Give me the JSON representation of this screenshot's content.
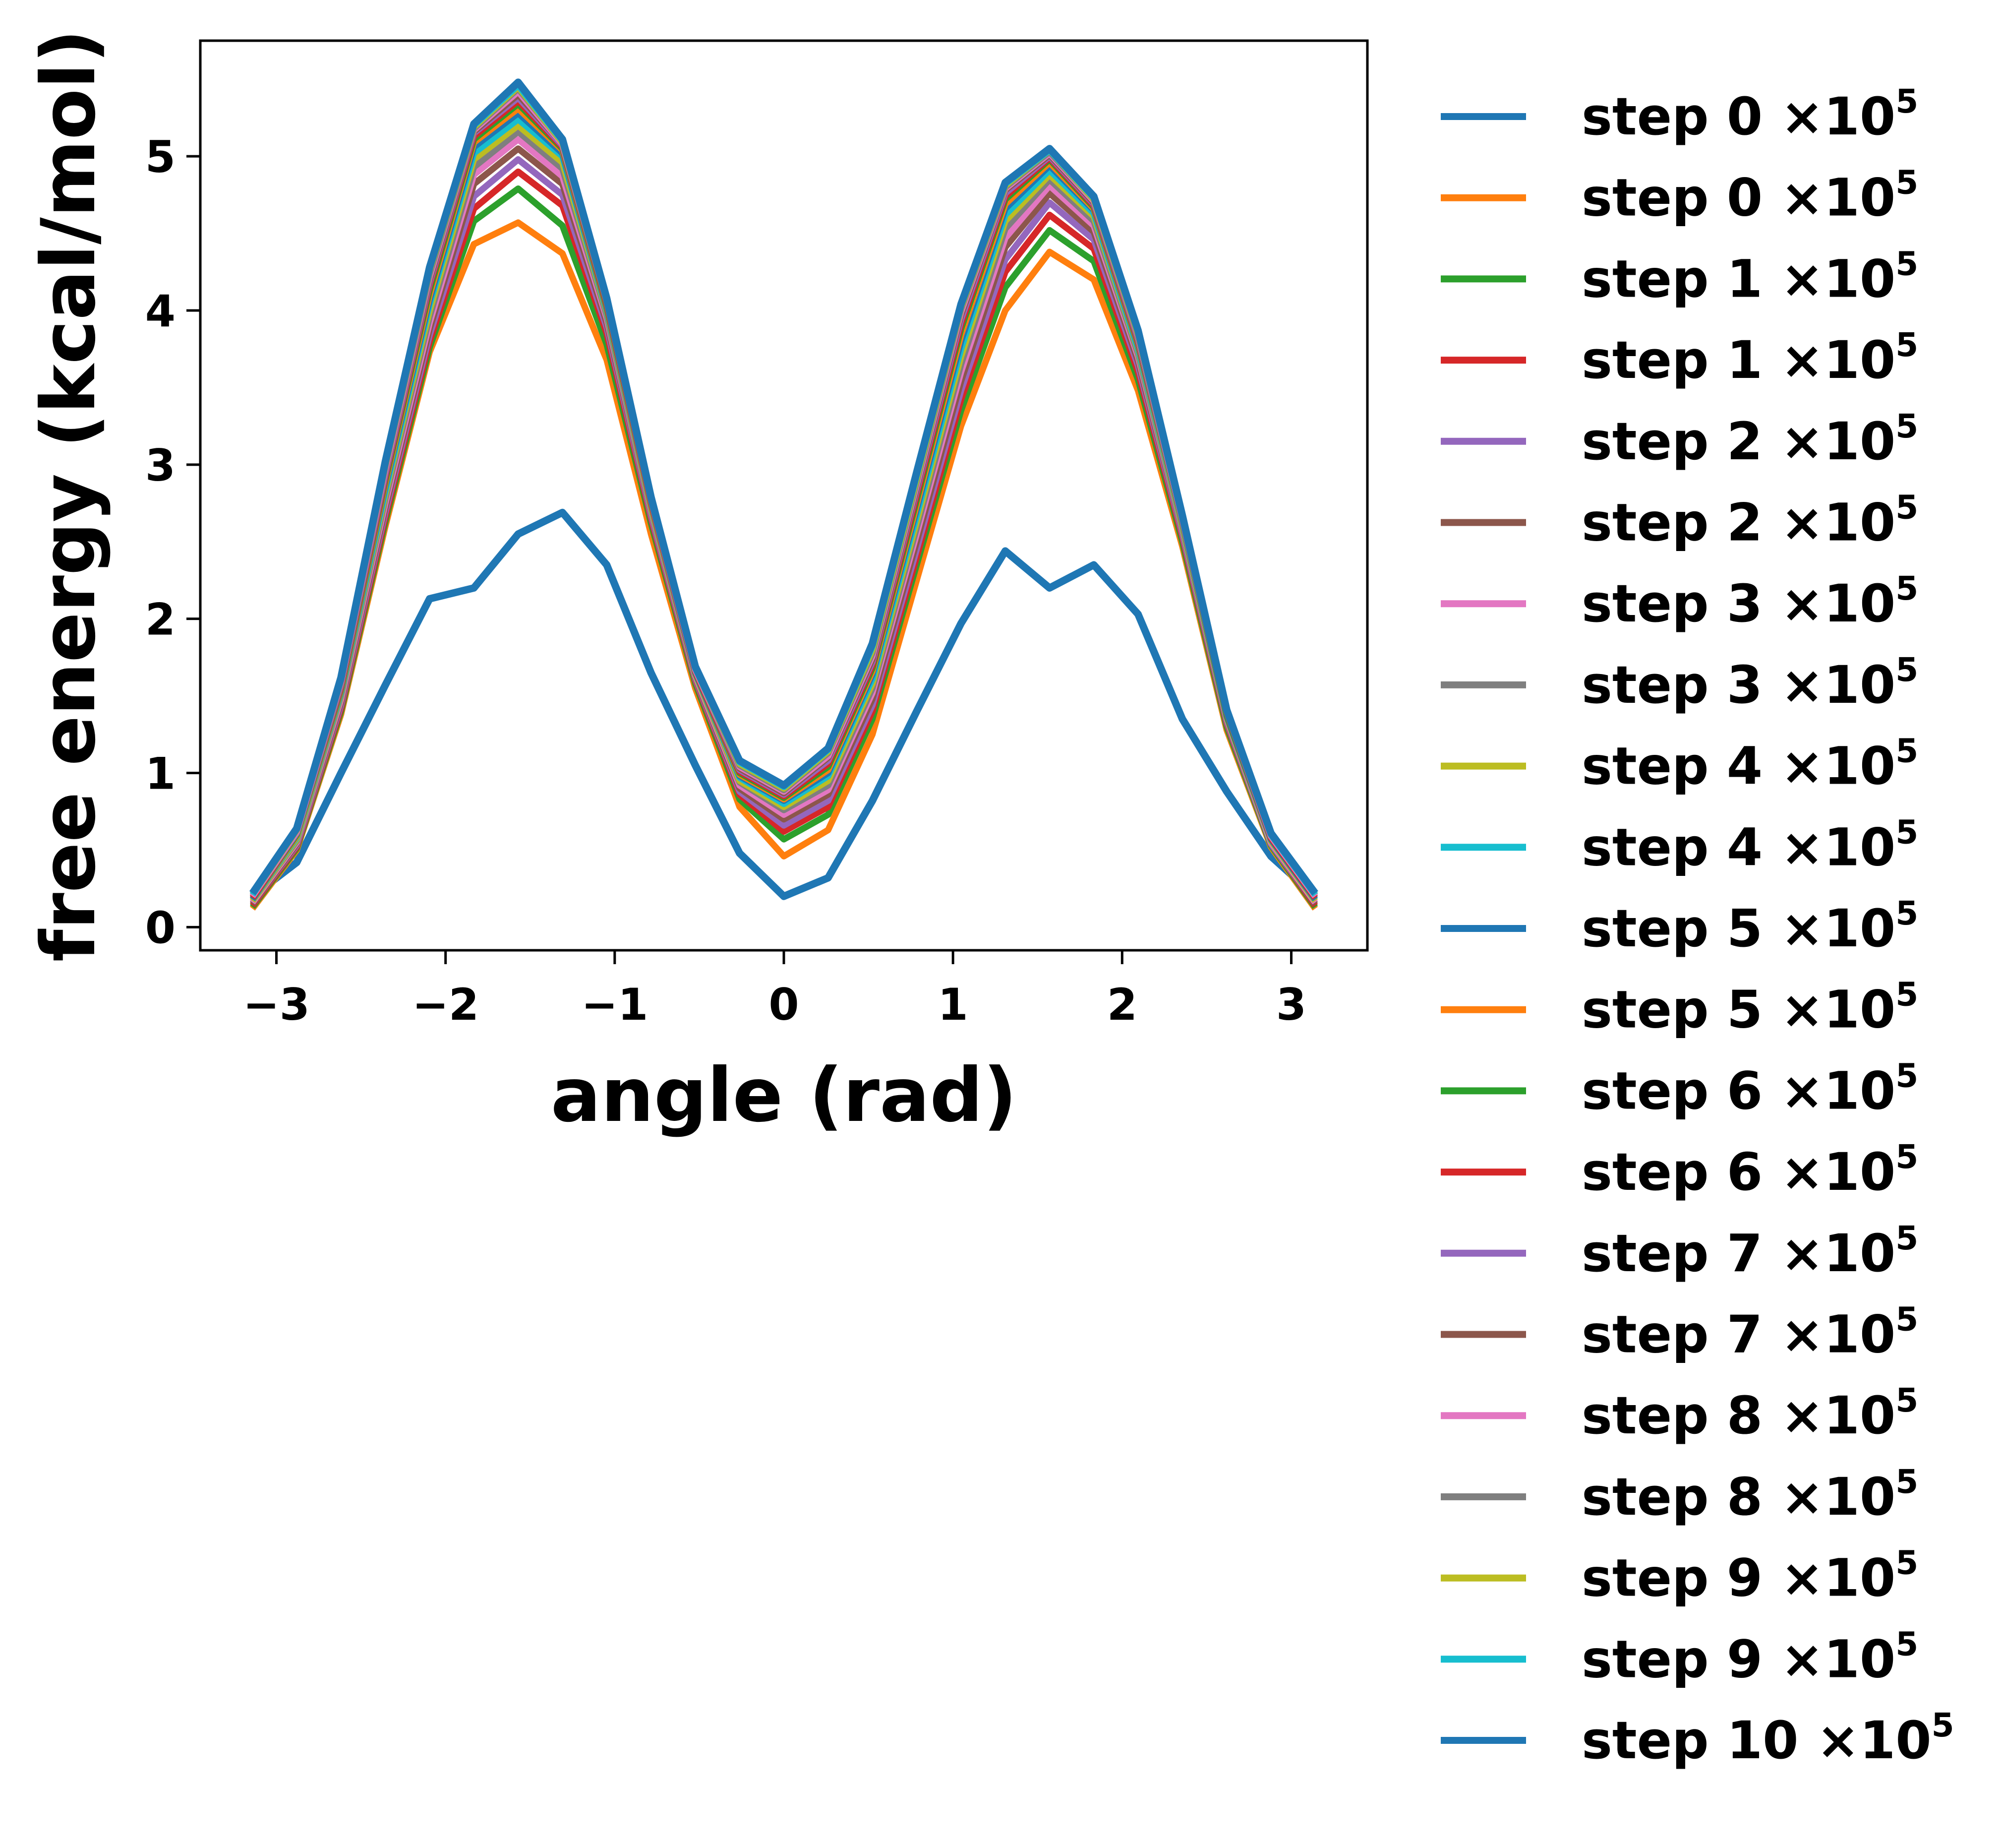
{
  "chart_data": {
    "type": "line",
    "xlabel": "angle (rad)",
    "ylabel": "free energy (kcal/mol)",
    "xlim": [
      -3.45,
      3.45
    ],
    "ylim": [
      -0.15,
      5.75
    ],
    "xticks": [
      -3,
      -2,
      -1,
      0,
      1,
      2,
      3
    ],
    "xtick_labels": [
      "−3",
      "−2",
      "−1",
      "0",
      "1",
      "2",
      "3"
    ],
    "yticks": [
      0,
      1,
      2,
      3,
      4,
      5
    ],
    "ytick_labels": [
      "0",
      "1",
      "2",
      "3",
      "4",
      "5"
    ],
    "grid": false,
    "legend_position": "outside-right",
    "x": [
      -3.1416,
      -2.8798,
      -2.618,
      -2.3562,
      -2.0944,
      -1.8326,
      -1.5708,
      -1.309,
      -1.0472,
      -0.7854,
      -0.5236,
      -0.2618,
      0,
      0.2618,
      0.5236,
      0.7854,
      1.0472,
      1.309,
      1.5708,
      1.8326,
      2.0944,
      2.3562,
      2.618,
      2.8798,
      3.1416
    ],
    "series": [
      {
        "name": "step 0 ×10",
        "exponent": "5",
        "color": "#1f77b4",
        "values": [
          0.2,
          0.42,
          1.0,
          1.57,
          2.13,
          2.2,
          2.55,
          2.69,
          2.35,
          1.65,
          1.05,
          0.48,
          0.2,
          0.32,
          0.82,
          1.4,
          1.97,
          2.44,
          2.2,
          2.35,
          2.03,
          1.35,
          0.88,
          0.46,
          0.2
        ]
      },
      {
        "name": "step 0 ×10",
        "exponent": "5",
        "color": "#ff7f0e",
        "values": [
          0.12,
          0.5,
          1.38,
          2.6,
          3.73,
          4.43,
          4.57,
          4.37,
          3.68,
          2.55,
          1.55,
          0.78,
          0.46,
          0.63,
          1.25,
          2.25,
          3.25,
          4.0,
          4.38,
          4.2,
          3.48,
          2.47,
          1.28,
          0.52,
          0.12
        ]
      },
      {
        "name": "step 1 ×10",
        "exponent": "5",
        "color": "#2ca02c",
        "values": [
          0.13,
          0.51,
          1.4,
          2.63,
          3.76,
          4.58,
          4.79,
          4.55,
          3.78,
          2.62,
          1.58,
          0.83,
          0.57,
          0.73,
          1.35,
          2.35,
          3.35,
          4.15,
          4.52,
          4.32,
          3.55,
          2.5,
          1.3,
          0.53,
          0.13
        ]
      },
      {
        "name": "step 1 ×10",
        "exponent": "5",
        "color": "#d62728",
        "values": [
          0.14,
          0.52,
          1.42,
          2.66,
          3.8,
          4.66,
          4.9,
          4.68,
          3.85,
          2.65,
          1.6,
          0.86,
          0.62,
          0.78,
          1.4,
          2.4,
          3.42,
          4.25,
          4.62,
          4.4,
          3.6,
          2.53,
          1.32,
          0.54,
          0.14
        ]
      },
      {
        "name": "step 2 ×10",
        "exponent": "5",
        "color": "#9467bd",
        "values": [
          0.15,
          0.53,
          1.44,
          2.69,
          3.84,
          4.74,
          4.98,
          4.75,
          3.89,
          2.67,
          1.61,
          0.88,
          0.66,
          0.82,
          1.44,
          2.45,
          3.48,
          4.33,
          4.7,
          4.46,
          3.64,
          2.55,
          1.33,
          0.54,
          0.15
        ]
      },
      {
        "name": "step 2 ×10",
        "exponent": "5",
        "color": "#8c564b",
        "values": [
          0.15,
          0.54,
          1.46,
          2.72,
          3.88,
          4.82,
          5.05,
          4.82,
          3.92,
          2.69,
          1.62,
          0.9,
          0.7,
          0.86,
          1.48,
          2.5,
          3.54,
          4.41,
          4.76,
          4.51,
          3.67,
          2.57,
          1.34,
          0.55,
          0.15
        ]
      },
      {
        "name": "step 3 ×10",
        "exponent": "5",
        "color": "#e377c2",
        "values": [
          0.16,
          0.55,
          1.48,
          2.75,
          3.92,
          4.88,
          5.11,
          4.87,
          3.95,
          2.7,
          1.63,
          0.92,
          0.73,
          0.89,
          1.52,
          2.55,
          3.6,
          4.47,
          4.81,
          4.55,
          3.7,
          2.58,
          1.35,
          0.55,
          0.16
        ]
      },
      {
        "name": "step 3 ×10",
        "exponent": "5",
        "color": "#7f7f7f",
        "values": [
          0.17,
          0.56,
          1.5,
          2.78,
          3.96,
          4.93,
          5.16,
          4.92,
          3.97,
          2.71,
          1.64,
          0.94,
          0.76,
          0.92,
          1.55,
          2.59,
          3.65,
          4.53,
          4.85,
          4.58,
          3.72,
          2.59,
          1.36,
          0.56,
          0.17
        ]
      },
      {
        "name": "step 4 ×10",
        "exponent": "5",
        "color": "#bcbd22",
        "values": [
          0.17,
          0.57,
          1.51,
          2.81,
          4.0,
          4.98,
          5.2,
          4.96,
          3.99,
          2.72,
          1.64,
          0.95,
          0.78,
          0.95,
          1.58,
          2.63,
          3.7,
          4.58,
          4.88,
          4.61,
          3.74,
          2.6,
          1.36,
          0.56,
          0.17
        ]
      },
      {
        "name": "step 4 ×10",
        "exponent": "5",
        "color": "#17becf",
        "values": [
          0.18,
          0.58,
          1.52,
          2.83,
          4.04,
          5.02,
          5.24,
          5.0,
          4.0,
          2.73,
          1.65,
          0.97,
          0.8,
          0.98,
          1.61,
          2.67,
          3.75,
          4.62,
          4.91,
          4.63,
          3.75,
          2.61,
          1.37,
          0.57,
          0.18
        ]
      },
      {
        "name": "step 5 ×10",
        "exponent": "5",
        "color": "#1f77b4",
        "values": [
          0.18,
          0.59,
          1.53,
          2.86,
          4.07,
          5.06,
          5.28,
          5.02,
          4.01,
          2.74,
          1.65,
          0.98,
          0.82,
          1.0,
          1.64,
          2.71,
          3.8,
          4.66,
          4.94,
          4.65,
          3.77,
          2.62,
          1.37,
          0.57,
          0.18
        ]
      },
      {
        "name": "step 5 ×10",
        "exponent": "5",
        "color": "#ff7f0e",
        "values": [
          0.19,
          0.59,
          1.54,
          2.88,
          4.1,
          5.09,
          5.31,
          5.04,
          4.02,
          2.74,
          1.66,
          0.99,
          0.83,
          1.02,
          1.66,
          2.74,
          3.84,
          4.69,
          4.96,
          4.66,
          3.78,
          2.62,
          1.38,
          0.58,
          0.19
        ]
      },
      {
        "name": "step 6 ×10",
        "exponent": "5",
        "color": "#2ca02c",
        "values": [
          0.19,
          0.6,
          1.55,
          2.9,
          4.13,
          5.11,
          5.34,
          5.05,
          4.03,
          2.75,
          1.66,
          1.0,
          0.84,
          1.04,
          1.68,
          2.77,
          3.88,
          4.72,
          4.98,
          4.67,
          3.79,
          2.63,
          1.38,
          0.58,
          0.19
        ]
      },
      {
        "name": "step 6 ×10",
        "exponent": "5",
        "color": "#d62728",
        "values": [
          0.19,
          0.61,
          1.56,
          2.92,
          4.16,
          5.13,
          5.36,
          5.06,
          4.04,
          2.75,
          1.66,
          1.01,
          0.85,
          1.06,
          1.7,
          2.8,
          3.91,
          4.74,
          4.99,
          4.68,
          3.8,
          2.64,
          1.39,
          0.58,
          0.19
        ]
      },
      {
        "name": "step 7 ×10",
        "exponent": "5",
        "color": "#9467bd",
        "values": [
          0.2,
          0.61,
          1.57,
          2.94,
          4.18,
          5.15,
          5.38,
          5.07,
          4.05,
          2.76,
          1.67,
          1.02,
          0.86,
          1.08,
          1.72,
          2.83,
          3.94,
          4.76,
          5.0,
          4.69,
          3.81,
          2.64,
          1.39,
          0.59,
          0.2
        ]
      },
      {
        "name": "step 7 ×10",
        "exponent": "5",
        "color": "#8c564b",
        "values": [
          0.2,
          0.62,
          1.58,
          2.96,
          4.2,
          5.16,
          5.4,
          5.08,
          4.05,
          2.76,
          1.67,
          1.03,
          0.87,
          1.1,
          1.74,
          2.85,
          3.97,
          4.78,
          5.01,
          4.7,
          3.82,
          2.65,
          1.39,
          0.59,
          0.2
        ]
      },
      {
        "name": "step 8 ×10",
        "exponent": "5",
        "color": "#e377c2",
        "values": [
          0.2,
          0.62,
          1.59,
          2.97,
          4.22,
          5.17,
          5.42,
          5.08,
          4.06,
          2.77,
          1.67,
          1.04,
          0.88,
          1.11,
          1.76,
          2.87,
          3.99,
          4.79,
          5.02,
          4.71,
          3.83,
          2.65,
          1.4,
          0.59,
          0.2
        ]
      },
      {
        "name": "step 8 ×10",
        "exponent": "5",
        "color": "#7f7f7f",
        "values": [
          0.21,
          0.63,
          1.6,
          2.99,
          4.24,
          5.18,
          5.44,
          5.09,
          4.06,
          2.77,
          1.68,
          1.05,
          0.89,
          1.13,
          1.78,
          2.89,
          4.01,
          4.8,
          5.03,
          4.72,
          3.84,
          2.66,
          1.4,
          0.6,
          0.21
        ]
      },
      {
        "name": "step 9 ×10",
        "exponent": "5",
        "color": "#bcbd22",
        "values": [
          0.21,
          0.63,
          1.61,
          3.0,
          4.26,
          5.19,
          5.45,
          5.09,
          4.07,
          2.78,
          1.68,
          1.06,
          0.9,
          1.14,
          1.8,
          2.91,
          4.02,
          4.81,
          5.04,
          4.72,
          3.85,
          2.66,
          1.4,
          0.6,
          0.21
        ]
      },
      {
        "name": "step 9 ×10",
        "exponent": "5",
        "color": "#17becf",
        "values": [
          0.21,
          0.64,
          1.61,
          3.01,
          4.27,
          5.2,
          5.46,
          5.1,
          4.07,
          2.78,
          1.68,
          1.07,
          0.91,
          1.15,
          1.82,
          2.93,
          4.03,
          4.82,
          5.04,
          4.73,
          3.86,
          2.67,
          1.41,
          0.6,
          0.21
        ]
      },
      {
        "name": "step 10 ×10",
        "exponent": "5",
        "color": "#1f77b4",
        "values": [
          0.22,
          0.64,
          1.62,
          3.02,
          4.28,
          5.21,
          5.48,
          5.11,
          4.08,
          2.79,
          1.69,
          1.08,
          0.92,
          1.16,
          1.84,
          2.95,
          4.04,
          4.83,
          5.05,
          4.74,
          3.87,
          2.67,
          1.41,
          0.61,
          0.22
        ]
      }
    ]
  }
}
